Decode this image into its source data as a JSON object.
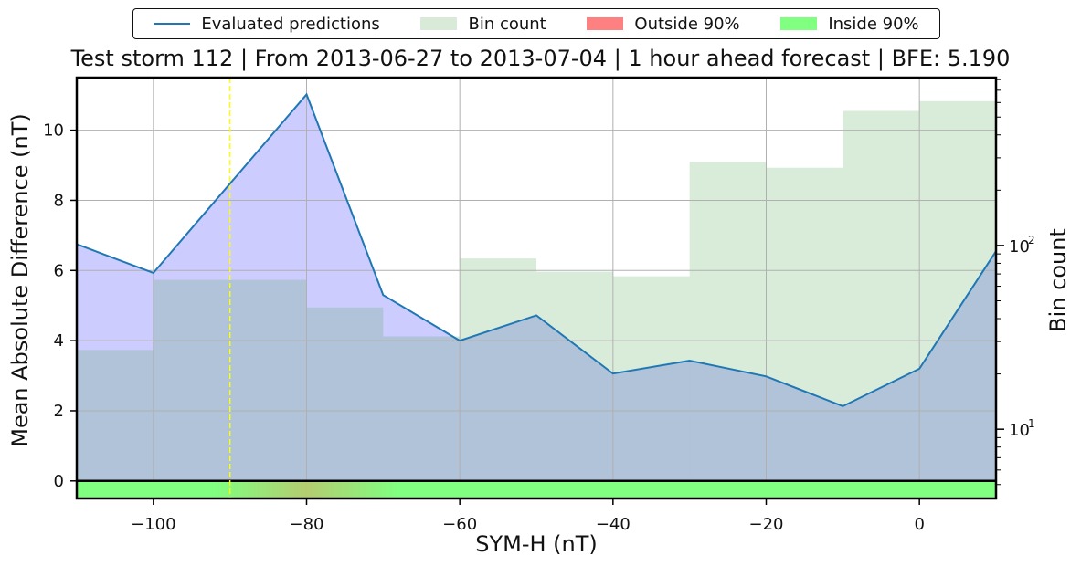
{
  "legend": {
    "items": [
      {
        "label": "Evaluated predictions",
        "kind": "line",
        "color": "#1f77b4"
      },
      {
        "label": "Bin count",
        "kind": "patch",
        "color": "#d9ebd8"
      },
      {
        "label": "Outside 90%",
        "kind": "patch",
        "color": "#ff8080"
      },
      {
        "label": "Inside 90%",
        "kind": "patch",
        "color": "#80ff80"
      }
    ]
  },
  "chart_data": {
    "type": "line",
    "title": "Test storm 112 | From 2013-06-27 to 2013-07-04 | 1 hour ahead forecast | BFE: 5.190",
    "xlabel": "SYM-H (nT)",
    "ylabel": "Mean Absolute Difference (nT)",
    "ylabel_right": "Bin count",
    "xlim": [
      -110,
      10
    ],
    "ylim": [
      -0.5,
      11.5
    ],
    "right_ylim": [
      4.2,
      820
    ],
    "right_yscale": "log",
    "grid": true,
    "legend_position": "top-center, outside",
    "x_ticks": [
      -100,
      -80,
      -60,
      -40,
      -20,
      0
    ],
    "x_tick_labels": [
      "−100",
      "−80",
      "−60",
      "−40",
      "−20",
      "0"
    ],
    "y_ticks": [
      0,
      2,
      4,
      6,
      8,
      10
    ],
    "y_tick_labels": [
      "0",
      "2",
      "4",
      "6",
      "8",
      "10"
    ],
    "right_major_ticks": [
      10,
      100
    ],
    "right_tick_labels": [
      "10",
      "10"
    ],
    "right_tick_exponent": "1|2",
    "series": [
      {
        "name": "Evaluated predictions",
        "color": "#1f77b4",
        "x": [
          -110,
          -100,
          -80,
          -70,
          -60,
          -50,
          -40,
          -30,
          -20,
          -10,
          0,
          10
        ],
        "values": [
          6.75,
          5.93,
          11.02,
          5.3,
          4.0,
          4.72,
          3.06,
          3.43,
          2.98,
          2.13,
          3.2,
          6.55
        ]
      }
    ],
    "fill_color": "#ccccff",
    "bin_counts": {
      "name": "Bin count",
      "color": "#d9ebd8",
      "edges": [
        -110,
        -100,
        -90,
        -80,
        -70,
        -60,
        -50,
        -40,
        -30,
        -20,
        -10,
        0,
        10
      ],
      "values": [
        27,
        65,
        65,
        46,
        32,
        85,
        72,
        68,
        285,
        265,
        540,
        610,
        118
      ]
    },
    "threshold_line": {
      "x": -90,
      "color": "#ffff00",
      "style": "dashed"
    },
    "coverage_band": {
      "y_range": [
        -0.5,
        0
      ],
      "base_color": "#80ff80",
      "highlight_x_range": [
        -92,
        -68
      ],
      "highlight_peak_x": -80,
      "highlight_color": "#b4cc70"
    }
  }
}
